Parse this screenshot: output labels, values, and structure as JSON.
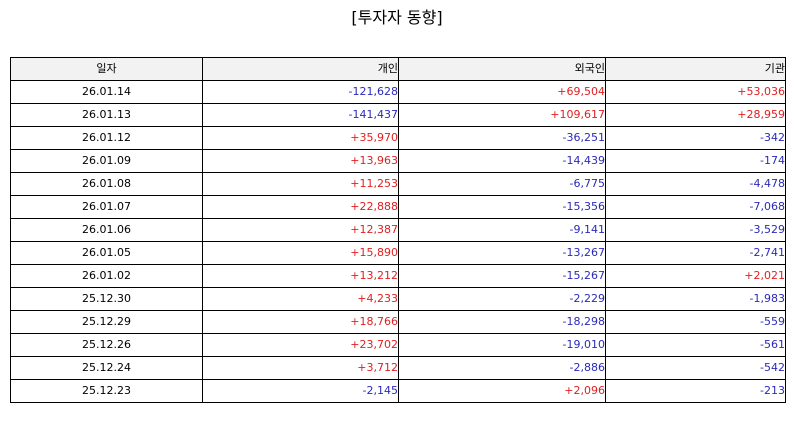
{
  "title": "[투자자 동향]",
  "colors": {
    "positive": "#e02020",
    "negative": "#2a2ab8",
    "header_bg": "#f2f2f2"
  },
  "table": {
    "headers": [
      "일자",
      "개인",
      "외국인",
      "기관"
    ],
    "rows": [
      {
        "date": "26.01.14",
        "individual": "-121,628",
        "foreign": "+69,504",
        "institution": "+53,036"
      },
      {
        "date": "26.01.13",
        "individual": "-141,437",
        "foreign": "+109,617",
        "institution": "+28,959"
      },
      {
        "date": "26.01.12",
        "individual": "+35,970",
        "foreign": "-36,251",
        "institution": "-342"
      },
      {
        "date": "26.01.09",
        "individual": "+13,963",
        "foreign": "-14,439",
        "institution": "-174"
      },
      {
        "date": "26.01.08",
        "individual": "+11,253",
        "foreign": "-6,775",
        "institution": "-4,478"
      },
      {
        "date": "26.01.07",
        "individual": "+22,888",
        "foreign": "-15,356",
        "institution": "-7,068"
      },
      {
        "date": "26.01.06",
        "individual": "+12,387",
        "foreign": "-9,141",
        "institution": "-3,529"
      },
      {
        "date": "26.01.05",
        "individual": "+15,890",
        "foreign": "-13,267",
        "institution": "-2,741"
      },
      {
        "date": "26.01.02",
        "individual": "+13,212",
        "foreign": "-15,267",
        "institution": "+2,021"
      },
      {
        "date": "25.12.30",
        "individual": "+4,233",
        "foreign": "-2,229",
        "institution": "-1,983"
      },
      {
        "date": "25.12.29",
        "individual": "+18,766",
        "foreign": "-18,298",
        "institution": "-559"
      },
      {
        "date": "25.12.26",
        "individual": "+23,702",
        "foreign": "-19,010",
        "institution": "-561"
      },
      {
        "date": "25.12.24",
        "individual": "+3,712",
        "foreign": "-2,886",
        "institution": "-542"
      },
      {
        "date": "25.12.23",
        "individual": "-2,145",
        "foreign": "+2,096",
        "institution": "-213"
      }
    ]
  }
}
